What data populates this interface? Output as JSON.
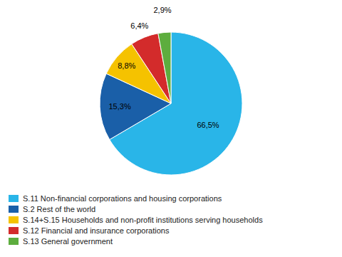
{
  "chart_data": {
    "type": "pie",
    "categories": [
      "S.11 Non-financial corporations and housing corporations",
      "S.2 Rest of the world",
      "S.14+S.15 Households and non-profit institutions serving households",
      "S.12 Financial and insurance corporations",
      "S.13 General government"
    ],
    "values": [
      66.5,
      15.3,
      8.8,
      6.4,
      2.9
    ],
    "value_labels": [
      "66,5%",
      "15,3%",
      "8,8%",
      "6,4%",
      "2,9%"
    ],
    "colors": [
      "#29B5E8",
      "#1A5FA8",
      "#F5C200",
      "#D32B2B",
      "#5DAD3E"
    ],
    "data_labels": true,
    "legend": "bottom"
  }
}
